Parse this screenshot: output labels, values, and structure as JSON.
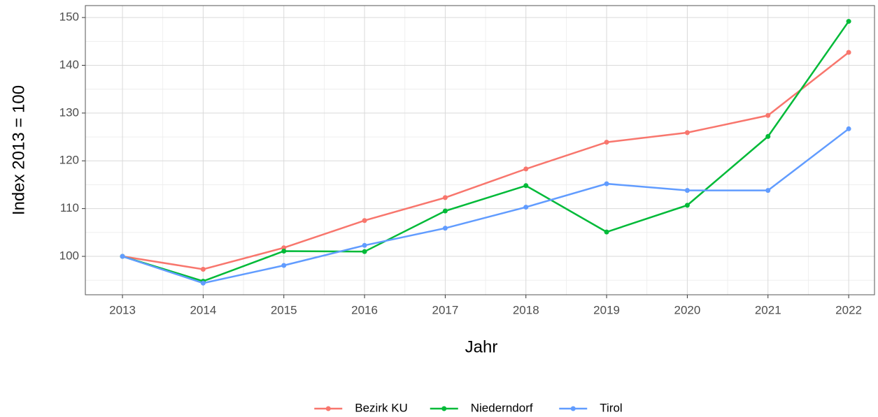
{
  "chart_data": {
    "type": "line",
    "x": [
      2013,
      2014,
      2015,
      2016,
      2017,
      2018,
      2019,
      2020,
      2021,
      2022
    ],
    "series": [
      {
        "name": "Bezirk KU",
        "color": "#F8766D",
        "values": [
          100,
          97.3,
          101.8,
          107.5,
          112.3,
          118.3,
          123.9,
          125.9,
          129.5,
          142.7
        ]
      },
      {
        "name": "Niederndorf",
        "color": "#00BA38",
        "values": [
          100,
          94.8,
          101.1,
          101,
          109.5,
          114.8,
          105.1,
          110.7,
          125.1,
          149.2
        ]
      },
      {
        "name": "Tirol",
        "color": "#619CFF",
        "values": [
          100,
          94.4,
          98.1,
          102.3,
          105.9,
          110.3,
          115.2,
          113.8,
          113.8,
          126.7
        ]
      }
    ],
    "xlabel": "Jahr",
    "ylabel": "Index  2013  = 100",
    "xlim": [
      2012.54,
      2022.32
    ],
    "ylim": [
      91.96,
      152.5
    ],
    "xticks": [
      2013,
      2014,
      2015,
      2016,
      2017,
      2018,
      2019,
      2020,
      2021,
      2022
    ],
    "yticks": [
      100,
      110,
      120,
      130,
      140,
      150
    ],
    "minor_xticks": [
      2013.5,
      2014.5,
      2015.5,
      2016.5,
      2017.5,
      2018.5,
      2019.5,
      2020.5,
      2021.5
    ],
    "minor_yticks": [
      95,
      105,
      115,
      125,
      135,
      145
    ],
    "grid": true,
    "legend": "bottom"
  }
}
